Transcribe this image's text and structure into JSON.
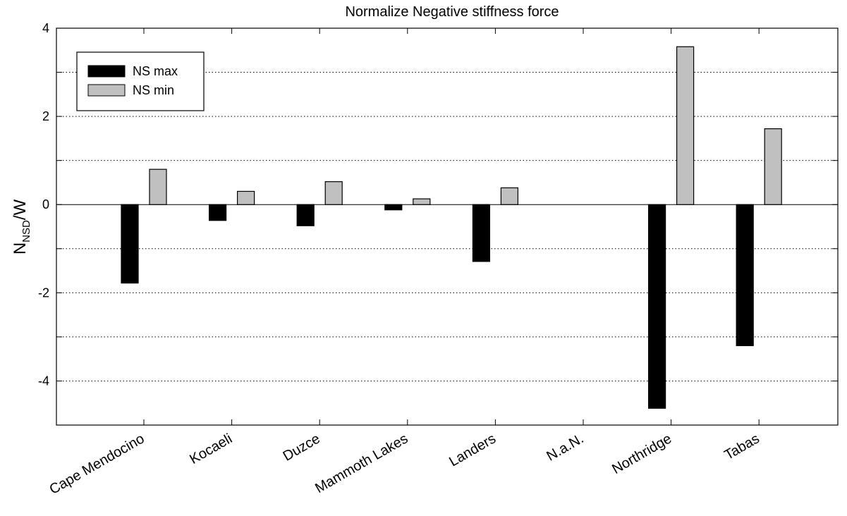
{
  "chart_data": {
    "type": "bar",
    "title": "Normalize Negative stiffness force",
    "ylabel": {
      "main": "N",
      "subscript": "NSD",
      "suffix": "/W"
    },
    "xlabel": "",
    "categories": [
      "Cape Mendocino",
      "Kocaeli",
      "Duzce",
      "Mammoth Lakes",
      "Landers",
      "N.a.N.",
      "Northridge",
      "Tabas"
    ],
    "series": [
      {
        "name": "NS max",
        "color": "#000000",
        "values": [
          -1.78,
          -0.36,
          -0.48,
          -0.12,
          -1.29,
          0,
          -4.62,
          -3.2
        ]
      },
      {
        "name": "NS min",
        "color": "#c0c0c0",
        "values": [
          0.8,
          0.3,
          0.52,
          0.13,
          0.38,
          0,
          3.58,
          1.72
        ]
      }
    ],
    "ylim": [
      -5,
      4
    ],
    "yticks": [
      4,
      2,
      0,
      -2,
      -4
    ],
    "ytick_labels": [
      "4",
      "2",
      "0",
      "-2",
      "-4"
    ],
    "grid": "horizontal dotted",
    "legend_position": "top-left"
  }
}
